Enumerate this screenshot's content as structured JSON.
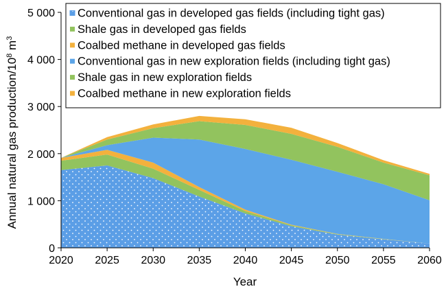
{
  "chart_data": {
    "type": "area",
    "stacked": true,
    "xlabel": "Year",
    "ylabel": "Annual natural gas production/10",
    "ylabel_sup": "8",
    "ylabel_unit": " m",
    "ylabel_unit_sup": "3",
    "xlim": [
      2020,
      2060
    ],
    "ylim": [
      0,
      5000
    ],
    "x_ticks": [
      "2020",
      "2025",
      "2030",
      "2035",
      "2040",
      "2045",
      "2050",
      "2055",
      "2060"
    ],
    "y_ticks": [
      {
        "value": 0,
        "label": "0"
      },
      {
        "value": 1000,
        "label": "1 000"
      },
      {
        "value": 2000,
        "label": "2 000"
      },
      {
        "value": 3000,
        "label": "3 000"
      },
      {
        "value": 4000,
        "label": "4 000"
      },
      {
        "value": 5000,
        "label": "5 000"
      }
    ],
    "grid": false,
    "legend_position": "top",
    "x": [
      2020,
      2025,
      2030,
      2035,
      2040,
      2045,
      2050,
      2055,
      2060
    ],
    "series": [
      {
        "name": "Conventional gas in developed gas fields (including tight gas)",
        "color": "#5b9ee6",
        "pattern": "dots",
        "values": [
          1650,
          1750,
          1480,
          1090,
          730,
          460,
          280,
          180,
          90
        ]
      },
      {
        "name": "Shale gas in developed gas fields",
        "color": "#92c35e",
        "values": [
          200,
          230,
          200,
          140,
          50,
          20,
          10,
          5,
          0
        ]
      },
      {
        "name": "Coalbed methane in developed gas fields",
        "color": "#f3b13d",
        "values": [
          60,
          100,
          130,
          60,
          30,
          10,
          5,
          5,
          0
        ]
      },
      {
        "name": "Conventional gas in new exploration fields (including tight gas)",
        "color": "#5ca5e8",
        "values": [
          0,
          100,
          530,
          1010,
          1290,
          1380,
          1320,
          1160,
          920
        ]
      },
      {
        "name": "Shale gas in new exploration fields",
        "color": "#92c35e",
        "values": [
          0,
          120,
          200,
          390,
          510,
          550,
          530,
          460,
          530
        ]
      },
      {
        "name": "Coalbed methane in new exploration fields",
        "color": "#f3b13d",
        "values": [
          0,
          50,
          80,
          110,
          120,
          130,
          80,
          50,
          30
        ]
      }
    ]
  }
}
